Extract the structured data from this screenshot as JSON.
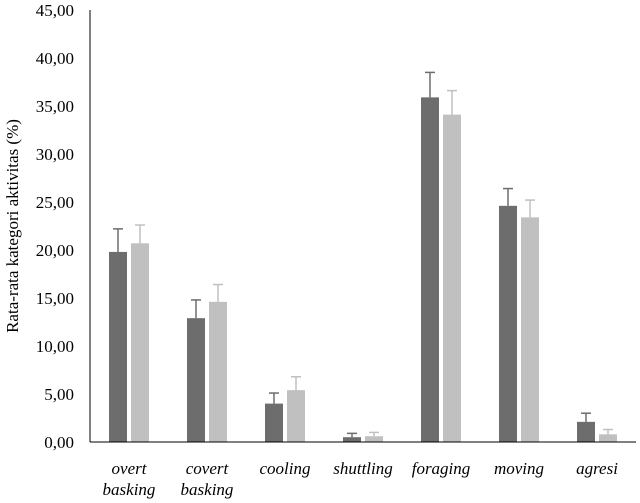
{
  "chart_data": {
    "type": "bar",
    "categories": [
      [
        "overt",
        "basking"
      ],
      [
        "covert",
        "basking"
      ],
      [
        "cooling"
      ],
      [
        "shuttling"
      ],
      [
        "foraging"
      ],
      [
        "moving"
      ],
      [
        "agresi"
      ]
    ],
    "series": [
      {
        "color": "#6d6d6d",
        "values": [
          19.8,
          12.9,
          4.0,
          0.5,
          35.9,
          24.6,
          2.1
        ],
        "errors": [
          2.4,
          1.9,
          1.1,
          0.4,
          2.6,
          1.8,
          0.9
        ]
      },
      {
        "color": "#c0c0c0",
        "values": [
          20.7,
          14.6,
          5.4,
          0.6,
          34.1,
          23.4,
          0.8
        ],
        "errors": [
          1.9,
          1.8,
          1.4,
          0.4,
          2.5,
          1.8,
          0.5
        ]
      }
    ],
    "ylabel": "Rata-rata kategori aktivitas (%)",
    "xlabel": "",
    "ylim": [
      0,
      45
    ],
    "yticks": [
      0,
      5,
      10,
      15,
      20,
      25,
      30,
      35,
      40,
      45
    ],
    "ytick_labels": [
      "0,00",
      "5,00",
      "10,00",
      "15,00",
      "20,00",
      "25,00",
      "30,00",
      "35,00",
      "40,00",
      "45,00"
    ],
    "grid": false,
    "legend": "none"
  }
}
